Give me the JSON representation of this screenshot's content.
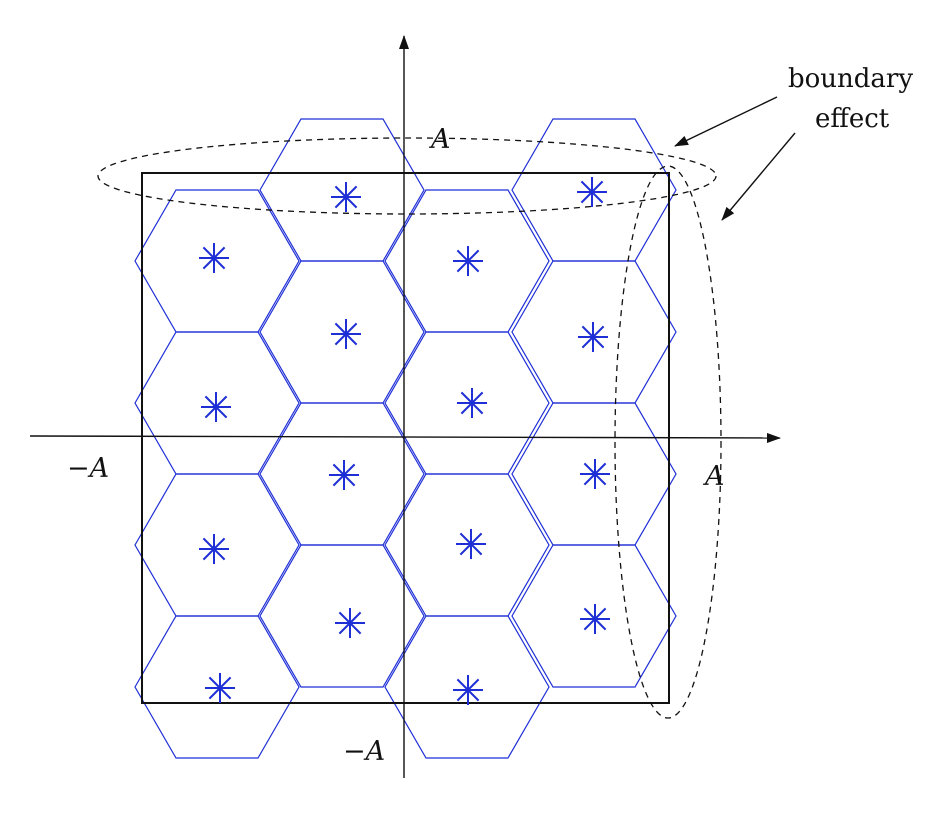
{
  "labels": {
    "a_top": "A",
    "a_right": "A",
    "neg_a_left": "−A",
    "neg_a_bottom": "−A",
    "annotation_line1": "boundary",
    "annotation_line2": "effect"
  },
  "colors": {
    "cells": "#1f2fd6",
    "centers": "#1f2fd6",
    "frame": "#111111",
    "axes": "#111111",
    "annotation": "#111111"
  },
  "lattice": {
    "cell_shape": "hexagon",
    "center_marker": "asterisk",
    "center_count": 16
  }
}
